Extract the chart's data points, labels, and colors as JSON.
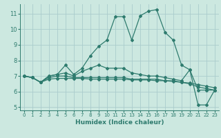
{
  "xlabel": "Humidex (Indice chaleur)",
  "bg_color": "#cce8e0",
  "grid_color": "#aacccc",
  "line_color": "#2e7b6e",
  "xlim": [
    -0.5,
    23.5
  ],
  "ylim": [
    4.8,
    11.6
  ],
  "yticks": [
    5,
    6,
    7,
    8,
    9,
    10,
    11
  ],
  "xticks": [
    0,
    1,
    2,
    3,
    4,
    5,
    6,
    7,
    8,
    9,
    10,
    11,
    12,
    13,
    14,
    15,
    16,
    17,
    18,
    19,
    20,
    21,
    22,
    23
  ],
  "line1": [
    7.0,
    6.9,
    6.6,
    7.0,
    7.1,
    7.7,
    7.1,
    7.5,
    8.3,
    8.9,
    9.3,
    10.8,
    10.8,
    9.3,
    10.85,
    11.15,
    11.25,
    9.8,
    9.3,
    7.7,
    7.4,
    5.15,
    5.15,
    6.1
  ],
  "line2": [
    7.0,
    6.9,
    6.6,
    7.0,
    7.1,
    7.2,
    7.0,
    7.3,
    7.5,
    7.7,
    7.5,
    7.5,
    7.5,
    7.2,
    7.1,
    7.0,
    7.0,
    6.9,
    6.8,
    6.7,
    7.4,
    6.1,
    6.1,
    6.1
  ],
  "line3": [
    7.0,
    6.9,
    6.6,
    6.9,
    7.0,
    7.0,
    6.9,
    6.9,
    6.9,
    6.9,
    6.9,
    6.9,
    6.9,
    6.8,
    6.8,
    6.8,
    6.8,
    6.7,
    6.7,
    6.6,
    6.5,
    6.3,
    6.2,
    6.1
  ],
  "line4": [
    7.0,
    6.9,
    6.6,
    6.8,
    6.85,
    6.85,
    6.85,
    6.85,
    6.8,
    6.8,
    6.8,
    6.8,
    6.8,
    6.75,
    6.75,
    6.75,
    6.7,
    6.7,
    6.65,
    6.6,
    6.55,
    6.45,
    6.35,
    6.25
  ]
}
